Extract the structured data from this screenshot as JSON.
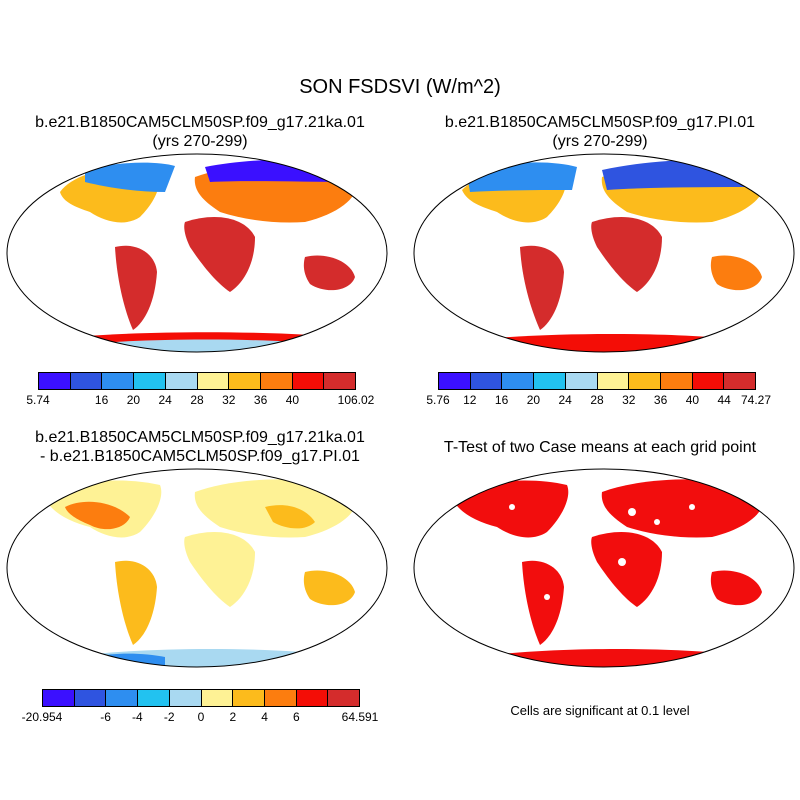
{
  "title": "SON FSDSVI (W/m^2)",
  "panels": [
    {
      "title_line1": "b.e21.B1850CAM5CLM50SP.f09_g17.21ka.01",
      "title_line2": "(yrs 270-299)",
      "colorbar_labels": [
        "5.74",
        "16",
        "20",
        "24",
        "28",
        "32",
        "36",
        "40",
        "106.02"
      ]
    },
    {
      "title_line1": "b.e21.B1850CAM5CLM50SP.f09_g17.PI.01",
      "title_line2": "(yrs 270-299)",
      "colorbar_labels": [
        "5.76",
        "12",
        "16",
        "20",
        "24",
        "28",
        "32",
        "36",
        "40",
        "44",
        "74.27"
      ]
    },
    {
      "title_line1": "b.e21.B1850CAM5CLM50SP.f09_g17.21ka.01",
      "title_line2": "- b.e21.B1850CAM5CLM50SP.f09_g17.PI.01",
      "colorbar_labels": [
        "-20.954",
        "-6",
        "-4",
        "-2",
        "0",
        "2",
        "4",
        "6",
        "64.591"
      ]
    },
    {
      "title_line1": "T-Test of two Case means at each grid point",
      "note": "Cells are significant at 0.1 level"
    }
  ],
  "colors": {
    "abs_scale": [
      "#3b10ff",
      "#2f54e0",
      "#2e8ef0",
      "#22c2f0",
      "#a9d9f1",
      "#fef295",
      "#fcbb1c",
      "#fc7d0f",
      "#f40d06",
      "#d42c2c"
    ],
    "diff_scale": [
      "#3b10ff",
      "#2f54e0",
      "#2e8ef0",
      "#22c2f0",
      "#a9d9f1",
      "#fef295",
      "#fcbb1c",
      "#fc7d0f",
      "#f40d06",
      "#d42c2c"
    ],
    "significant": "#f20d0d"
  }
}
